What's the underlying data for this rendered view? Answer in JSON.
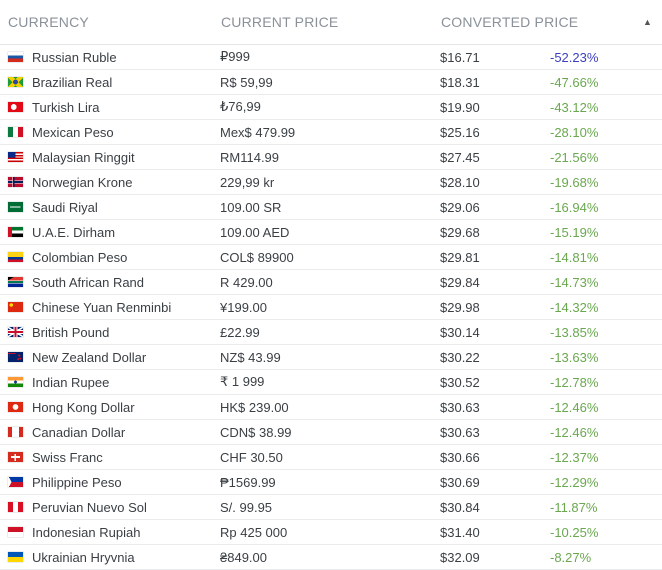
{
  "header": {
    "currency": "CURRENCY",
    "current_price": "CURRENT PRICE",
    "converted_price": "CONVERTED PRICE",
    "sort_indicator": "▲"
  },
  "rows": [
    {
      "flag": "ru",
      "currency": "Russian Ruble",
      "price": "₽999",
      "converted": "$16.71",
      "diff": "-52.23%"
    },
    {
      "flag": "br",
      "currency": "Brazilian Real",
      "price": "R$ 59,99",
      "converted": "$18.31",
      "diff": "-47.66%"
    },
    {
      "flag": "tr",
      "currency": "Turkish Lira",
      "price": "₺76,99",
      "converted": "$19.90",
      "diff": "-43.12%"
    },
    {
      "flag": "mx",
      "currency": "Mexican Peso",
      "price": "Mex$ 479.99",
      "converted": "$25.16",
      "diff": "-28.10%"
    },
    {
      "flag": "my",
      "currency": "Malaysian Ringgit",
      "price": "RM114.99",
      "converted": "$27.45",
      "diff": "-21.56%"
    },
    {
      "flag": "no",
      "currency": "Norwegian Krone",
      "price": "229,99 kr",
      "converted": "$28.10",
      "diff": "-19.68%"
    },
    {
      "flag": "sa",
      "currency": "Saudi Riyal",
      "price": "109.00 SR",
      "converted": "$29.06",
      "diff": "-16.94%"
    },
    {
      "flag": "ae",
      "currency": "U.A.E. Dirham",
      "price": "109.00 AED",
      "converted": "$29.68",
      "diff": "-15.19%"
    },
    {
      "flag": "co",
      "currency": "Colombian Peso",
      "price": "COL$ 89900",
      "converted": "$29.81",
      "diff": "-14.81%"
    },
    {
      "flag": "za",
      "currency": "South African Rand",
      "price": "R 429.00",
      "converted": "$29.84",
      "diff": "-14.73%"
    },
    {
      "flag": "cn",
      "currency": "Chinese Yuan Renminbi",
      "price": "¥199.00",
      "converted": "$29.98",
      "diff": "-14.32%"
    },
    {
      "flag": "gb",
      "currency": "British Pound",
      "price": "£22.99",
      "converted": "$30.14",
      "diff": "-13.85%"
    },
    {
      "flag": "nz",
      "currency": "New Zealand Dollar",
      "price": "NZ$ 43.99",
      "converted": "$30.22",
      "diff": "-13.63%"
    },
    {
      "flag": "in",
      "currency": "Indian Rupee",
      "price": "₹ 1 999",
      "converted": "$30.52",
      "diff": "-12.78%"
    },
    {
      "flag": "hk",
      "currency": "Hong Kong Dollar",
      "price": "HK$ 239.00",
      "converted": "$30.63",
      "diff": "-12.46%"
    },
    {
      "flag": "ca",
      "currency": "Canadian Dollar",
      "price": "CDN$ 38.99",
      "converted": "$30.63",
      "diff": "-12.46%"
    },
    {
      "flag": "ch",
      "currency": "Swiss Franc",
      "price": "CHF 30.50",
      "converted": "$30.66",
      "diff": "-12.37%"
    },
    {
      "flag": "ph",
      "currency": "Philippine Peso",
      "price": "₱1569.99",
      "converted": "$30.69",
      "diff": "-12.29%"
    },
    {
      "flag": "pe",
      "currency": "Peruvian Nuevo Sol",
      "price": "S/. 99.95",
      "converted": "$30.84",
      "diff": "-11.87%"
    },
    {
      "flag": "id",
      "currency": "Indonesian Rupiah",
      "price": "Rp 425 000",
      "converted": "$31.40",
      "diff": "-10.25%"
    },
    {
      "flag": "ua",
      "currency": "Ukrainian Hryvnia",
      "price": "₴849.00",
      "converted": "$32.09",
      "diff": "-8.27%"
    }
  ],
  "colors": {
    "diff_negative": "#6aa84f",
    "diff_highlight": "#3d3fbf"
  }
}
